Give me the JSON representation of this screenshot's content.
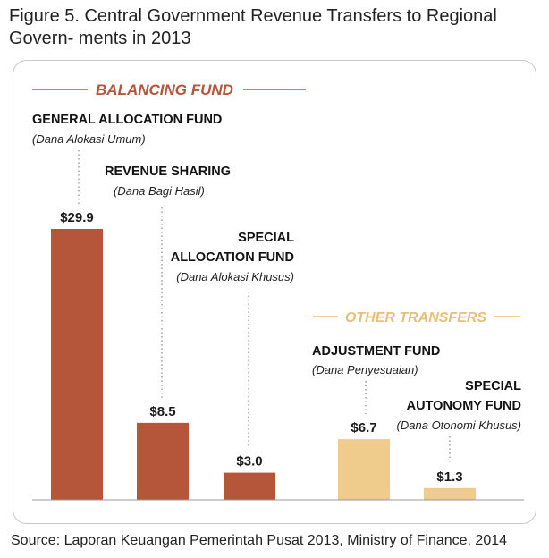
{
  "figure": {
    "title": "Figure 5. Central Government Revenue Transfers to Regional Govern- ments in 2013",
    "source": "Source: Laporan Keuangan Pemerintah Pusat 2013, Ministry of Finance, 2014"
  },
  "colors": {
    "balancing": "#b5553a",
    "other": "#efcb8c",
    "header_balancing": "#b5553a",
    "header_other": "#e8bf7a"
  },
  "chart_data": {
    "type": "bar",
    "title": "Figure 5. Central Government Revenue Transfers to Regional Governments in 2013",
    "ylim": [
      0,
      29.9
    ],
    "grid": false,
    "groups": [
      {
        "name": "BALANCING FUND",
        "categories": [
          "GENERAL ALLOCATION FUND",
          "REVENUE SHARING",
          "SPECIAL ALLOCATION FUND"
        ]
      },
      {
        "name": "OTHER TRANSFERS",
        "categories": [
          "ADJUSTMENT FUND",
          "SPECIAL AUTONOMY FUND"
        ]
      }
    ],
    "categories": [
      "GENERAL ALLOCATION FUND",
      "REVENUE SHARING",
      "SPECIAL ALLOCATION FUND",
      "ADJUSTMENT FUND",
      "SPECIAL AUTONOMY FUND"
    ],
    "subtitles": [
      "(Dana Alokasi Umum)",
      "(Dana Bagi Hasil)",
      "(Dana Alokasi Khusus)",
      "(Dana Penyesuaian)",
      "(Dana Otonomi Khusus)"
    ],
    "values": [
      29.9,
      8.5,
      3.0,
      6.7,
      1.3
    ],
    "value_labels": [
      "$29.9",
      "$8.5",
      "$3.0",
      "$6.7",
      "$1.3"
    ],
    "groups_of_bars": [
      "BALANCING FUND",
      "BALANCING FUND",
      "BALANCING FUND",
      "OTHER TRANSFERS",
      "OTHER TRANSFERS"
    ]
  }
}
